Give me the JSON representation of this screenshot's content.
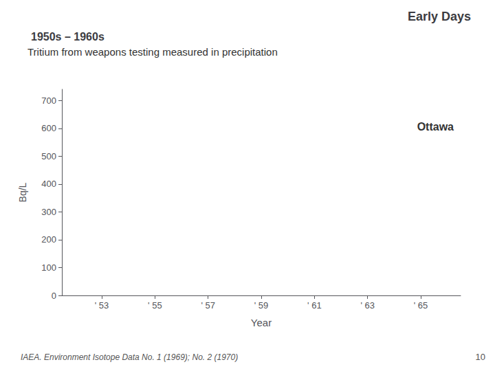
{
  "chart_data": {
    "type": "line",
    "title": "Early Days",
    "subtitle": "1950s – 1960s",
    "annotations": [
      "Tritium from weapons testing measured in precipitation",
      "Ottawa",
      "IAEA. Environment Isotope Data No. 1 (1969); No. 2 (1970)",
      "10"
    ],
    "xlabel": "Year",
    "ylabel": "Bq/L",
    "xlim": [
      1951.5,
      1966.5
    ],
    "xticks": [
      {
        "value": 1953,
        "label": "' 53"
      },
      {
        "value": 1955,
        "label": "' 55"
      },
      {
        "value": 1957,
        "label": "' 57"
      },
      {
        "value": 1959,
        "label": "' 59"
      },
      {
        "value": 1961,
        "label": "' 61"
      },
      {
        "value": 1963,
        "label": "' 63"
      },
      {
        "value": 1965,
        "label": "' 65"
      }
    ],
    "ylim": [
      0,
      740
    ],
    "yticks": [
      0,
      100,
      200,
      300,
      400,
      500,
      600,
      700
    ],
    "grid": false
  }
}
